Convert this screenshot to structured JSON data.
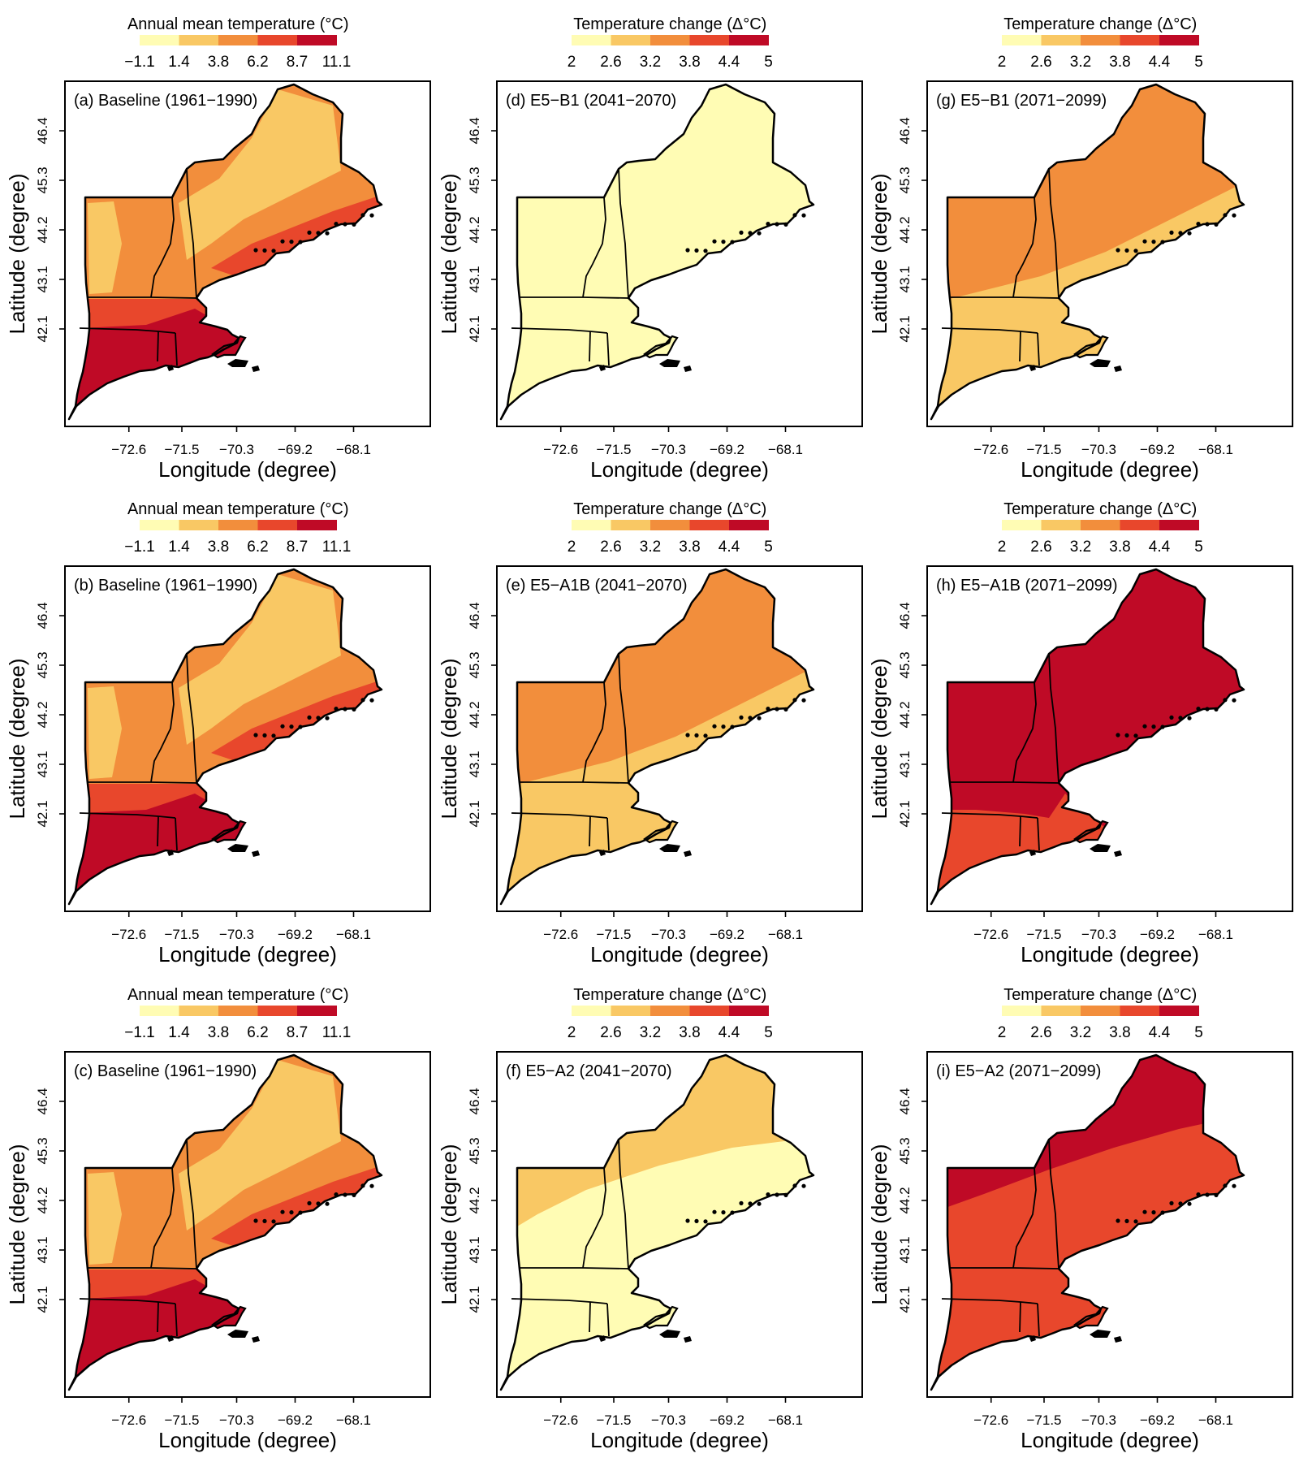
{
  "colors": {
    "c1": "#FFFCB4",
    "c2": "#F9C864",
    "c3": "#F28E3C",
    "c4": "#E8472C",
    "c5": "#BF0A26",
    "border": "#000000"
  },
  "legends": {
    "baseline": {
      "title": "Annual mean temperature (°C)",
      "ticks": [
        "−1.1",
        "1.4",
        "3.8",
        "6.2",
        "8.7",
        "11.1"
      ]
    },
    "change": {
      "title": "Temperature change (Δ°C)",
      "ticks": [
        "2",
        "2.6",
        "3.2",
        "3.8",
        "4.4",
        "5"
      ]
    }
  },
  "axes": {
    "xlabel": "Longitude (degree)",
    "ylabel": "Latitude (degree)",
    "xticks": [
      "−72.6",
      "−71.5",
      "−70.3",
      "−69.2",
      "−68.1"
    ],
    "yticks": [
      "42.1",
      "43.1",
      "44.2",
      "45.3",
      "46.4"
    ]
  },
  "panels": [
    {
      "label": "(a) Baseline (1961−1990)",
      "legend": "baseline",
      "fill": "baseline"
    },
    {
      "label": "(d) E5−B1 (2041−2070)",
      "legend": "change",
      "fill": "uniform_c1"
    },
    {
      "label": "(g) E5−B1 (2071−2099)",
      "legend": "change",
      "fill": "split_c3_c2"
    },
    {
      "label": "(b) Baseline (1961−1990)",
      "legend": "baseline",
      "fill": "baseline"
    },
    {
      "label": "(e) E5−A1B (2041−2070)",
      "legend": "change",
      "fill": "split_c3_c2"
    },
    {
      "label": "(h) E5−A1B (2071−2099)",
      "legend": "change",
      "fill": "split_c5_c4"
    },
    {
      "label": "(c) Baseline (1961−1990)",
      "legend": "baseline",
      "fill": "baseline"
    },
    {
      "label": "(f) E5−A2 (2041−2070)",
      "legend": "change",
      "fill": "split_c2_c1"
    },
    {
      "label": "(i) E5−A2 (2071−2099)",
      "legend": "change",
      "fill": "split_c5_c4_north"
    }
  ]
}
